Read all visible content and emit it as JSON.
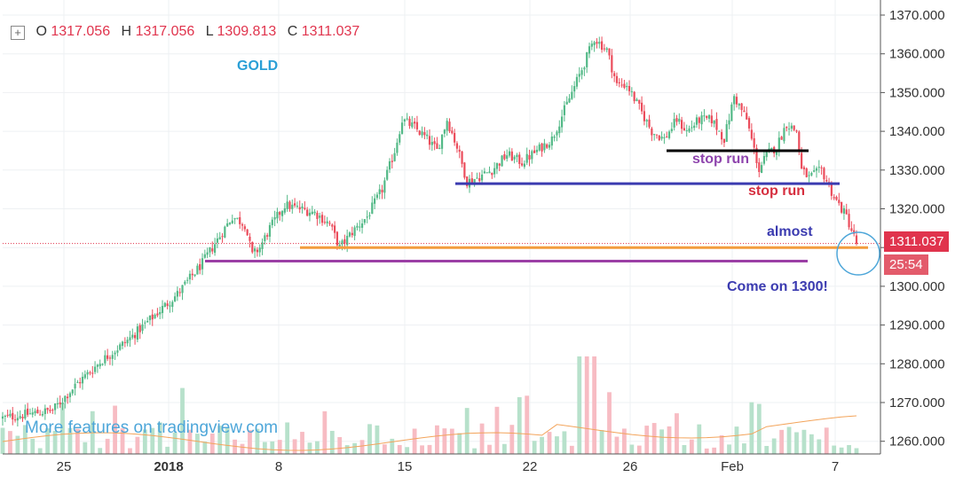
{
  "header": {
    "open_label": "O",
    "open": "1317.056",
    "high_label": "H",
    "high": "1317.056",
    "low_label": "L",
    "low": "1309.813",
    "close_label": "C",
    "close": "1311.037"
  },
  "symbol": "GOLD",
  "watermark": "More features on tradingview.com",
  "annotations": {
    "stop_run_1": "stop run",
    "stop_run_2": "stop run",
    "almost": "almost",
    "come_on": "Come on 1300!"
  },
  "price_tag": "1311.037",
  "countdown_tag": "25:54",
  "colors": {
    "up": "#53b987",
    "down": "#eb4d5c",
    "vol_up": "#b7e1cb",
    "vol_down": "#f7bcc3",
    "orange_line": "#f39c3d",
    "purple_line": "#9b3fa5",
    "blue_line": "#3b3bb0",
    "black_line": "#000000",
    "annotation_purple": "#8e44ad",
    "annotation_red": "#d62f3f",
    "annotation_blue": "#3b3bb0"
  },
  "chart_data": {
    "type": "candlestick",
    "ylim": [
      1256,
      1371
    ],
    "y_ticks": [
      "1370.000",
      "1360.000",
      "1350.000",
      "1340.000",
      "1330.000",
      "1320.000",
      "1310.000",
      "1300.000",
      "1290.000",
      "1280.000",
      "1270.000",
      "1260.000"
    ],
    "x_ticks": [
      "25",
      "2018",
      "8",
      "15",
      "22",
      "26",
      "Feb",
      "7"
    ],
    "last_price": 1311.037,
    "horizontal_levels": [
      {
        "name": "orange-support",
        "price": 1310.0
      },
      {
        "name": "purple-support",
        "price": 1306.5
      },
      {
        "name": "blue-support",
        "price": 1326.5
      },
      {
        "name": "black-level",
        "price": 1335.0
      }
    ],
    "close_path": [
      [
        0,
        1266
      ],
      [
        10,
        1267
      ],
      [
        20,
        1268
      ],
      [
        30,
        1275
      ],
      [
        40,
        1281
      ],
      [
        50,
        1286
      ],
      [
        60,
        1292
      ],
      [
        70,
        1298
      ],
      [
        80,
        1306
      ],
      [
        86,
        1312
      ],
      [
        92,
        1318
      ],
      [
        97,
        1316
      ],
      [
        100,
        1308
      ],
      [
        103,
        1310
      ],
      [
        107,
        1315
      ],
      [
        113,
        1321
      ],
      [
        119,
        1320
      ],
      [
        125,
        1319
      ],
      [
        131,
        1316
      ],
      [
        135,
        1310
      ],
      [
        140,
        1314
      ],
      [
        146,
        1318
      ],
      [
        152,
        1325
      ],
      [
        157,
        1335
      ],
      [
        160,
        1343
      ],
      [
        165,
        1341
      ],
      [
        170,
        1338
      ],
      [
        174,
        1335
      ],
      [
        178,
        1343
      ],
      [
        182,
        1336
      ],
      [
        186,
        1327
      ],
      [
        190,
        1328
      ],
      [
        196,
        1330
      ],
      [
        202,
        1334
      ],
      [
        208,
        1332
      ],
      [
        214,
        1335
      ],
      [
        220,
        1338
      ],
      [
        226,
        1347
      ],
      [
        232,
        1356
      ],
      [
        237,
        1364
      ],
      [
        242,
        1361
      ],
      [
        246,
        1352
      ],
      [
        250,
        1352
      ],
      [
        255,
        1346
      ],
      [
        260,
        1340
      ],
      [
        265,
        1338
      ],
      [
        270,
        1343
      ],
      [
        274,
        1340
      ],
      [
        279,
        1343
      ],
      [
        284,
        1343
      ],
      [
        289,
        1338
      ],
      [
        293,
        1349
      ],
      [
        298,
        1343
      ],
      [
        303,
        1330
      ],
      [
        306,
        1334
      ],
      [
        310,
        1336
      ],
      [
        314,
        1342
      ],
      [
        318,
        1340
      ],
      [
        320,
        1330
      ],
      [
        323,
        1328
      ],
      [
        328,
        1330
      ],
      [
        333,
        1323
      ],
      [
        338,
        1318
      ],
      [
        342,
        1311
      ]
    ]
  }
}
